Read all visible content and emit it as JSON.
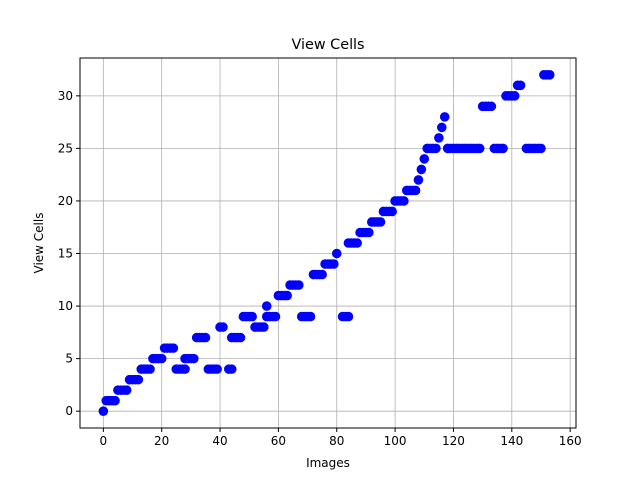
{
  "chart_data": {
    "type": "scatter",
    "title": "View Cells",
    "xlabel": "Images",
    "ylabel": "View Cells",
    "xlim": [
      -8,
      162
    ],
    "ylim": [
      -1.6,
      33.6
    ],
    "xticks": [
      0,
      20,
      40,
      60,
      80,
      100,
      120,
      140,
      160
    ],
    "yticks": [
      0,
      5,
      10,
      15,
      20,
      25,
      30
    ],
    "grid": true,
    "marker_color": "#0000ff",
    "series": [
      {
        "points": [
          [
            0,
            0
          ],
          [
            1,
            1
          ],
          [
            2,
            1
          ],
          [
            3,
            1
          ],
          [
            4,
            1
          ],
          [
            5,
            2
          ],
          [
            6,
            2
          ],
          [
            7,
            2
          ],
          [
            8,
            2
          ],
          [
            9,
            3
          ],
          [
            10,
            3
          ],
          [
            11,
            3
          ],
          [
            12,
            3
          ],
          [
            13,
            4
          ],
          [
            14,
            4
          ],
          [
            15,
            4
          ],
          [
            16,
            4
          ],
          [
            17,
            5
          ],
          [
            18,
            5
          ],
          [
            19,
            5
          ],
          [
            20,
            5
          ],
          [
            21,
            6
          ],
          [
            22,
            6
          ],
          [
            23,
            6
          ],
          [
            24,
            6
          ],
          [
            25,
            4
          ],
          [
            26,
            4
          ],
          [
            27,
            4
          ],
          [
            28,
            4
          ],
          [
            28,
            5
          ],
          [
            29,
            5
          ],
          [
            30,
            5
          ],
          [
            31,
            5
          ],
          [
            32,
            7
          ],
          [
            33,
            7
          ],
          [
            34,
            7
          ],
          [
            35,
            7
          ],
          [
            36,
            4
          ],
          [
            37,
            4
          ],
          [
            38,
            4
          ],
          [
            39,
            4
          ],
          [
            40,
            8
          ],
          [
            41,
            8
          ],
          [
            43,
            4
          ],
          [
            44,
            4
          ],
          [
            44,
            7
          ],
          [
            45,
            7
          ],
          [
            46,
            7
          ],
          [
            47,
            7
          ],
          [
            48,
            9
          ],
          [
            49,
            9
          ],
          [
            50,
            9
          ],
          [
            51,
            9
          ],
          [
            52,
            8
          ],
          [
            53,
            8
          ],
          [
            54,
            8
          ],
          [
            55,
            8
          ],
          [
            56,
            10
          ],
          [
            56,
            9
          ],
          [
            57,
            9
          ],
          [
            58,
            9
          ],
          [
            59,
            9
          ],
          [
            60,
            11
          ],
          [
            61,
            11
          ],
          [
            62,
            11
          ],
          [
            63,
            11
          ],
          [
            64,
            12
          ],
          [
            65,
            12
          ],
          [
            66,
            12
          ],
          [
            67,
            12
          ],
          [
            68,
            9
          ],
          [
            69,
            9
          ],
          [
            70,
            9
          ],
          [
            71,
            9
          ],
          [
            72,
            13
          ],
          [
            73,
            13
          ],
          [
            74,
            13
          ],
          [
            75,
            13
          ],
          [
            76,
            14
          ],
          [
            77,
            14
          ],
          [
            78,
            14
          ],
          [
            79,
            14
          ],
          [
            80,
            15
          ],
          [
            82,
            9
          ],
          [
            83,
            9
          ],
          [
            84,
            9
          ],
          [
            84,
            16
          ],
          [
            85,
            16
          ],
          [
            86,
            16
          ],
          [
            87,
            16
          ],
          [
            88,
            17
          ],
          [
            89,
            17
          ],
          [
            90,
            17
          ],
          [
            91,
            17
          ],
          [
            92,
            18
          ],
          [
            93,
            18
          ],
          [
            94,
            18
          ],
          [
            95,
            18
          ],
          [
            96,
            19
          ],
          [
            97,
            19
          ],
          [
            98,
            19
          ],
          [
            99,
            19
          ],
          [
            100,
            20
          ],
          [
            101,
            20
          ],
          [
            102,
            20
          ],
          [
            103,
            20
          ],
          [
            104,
            21
          ],
          [
            105,
            21
          ],
          [
            106,
            21
          ],
          [
            107,
            21
          ],
          [
            108,
            22
          ],
          [
            109,
            23
          ],
          [
            110,
            24
          ],
          [
            111,
            25
          ],
          [
            112,
            25
          ],
          [
            113,
            25
          ],
          [
            114,
            25
          ],
          [
            115,
            26
          ],
          [
            116,
            27
          ],
          [
            117,
            28
          ],
          [
            118,
            25
          ],
          [
            119,
            25
          ],
          [
            120,
            25
          ],
          [
            121,
            25
          ],
          [
            122,
            25
          ],
          [
            123,
            25
          ],
          [
            124,
            25
          ],
          [
            125,
            25
          ],
          [
            126,
            25
          ],
          [
            127,
            25
          ],
          [
            128,
            25
          ],
          [
            129,
            25
          ],
          [
            130,
            29
          ],
          [
            131,
            29
          ],
          [
            132,
            29
          ],
          [
            133,
            29
          ],
          [
            134,
            25
          ],
          [
            135,
            25
          ],
          [
            136,
            25
          ],
          [
            137,
            25
          ],
          [
            138,
            30
          ],
          [
            139,
            30
          ],
          [
            140,
            30
          ],
          [
            141,
            30
          ],
          [
            142,
            31
          ],
          [
            143,
            31
          ],
          [
            145,
            25
          ],
          [
            146,
            25
          ],
          [
            147,
            25
          ],
          [
            148,
            25
          ],
          [
            149,
            25
          ],
          [
            150,
            25
          ],
          [
            151,
            32
          ],
          [
            152,
            32
          ],
          [
            153,
            32
          ]
        ]
      }
    ]
  }
}
